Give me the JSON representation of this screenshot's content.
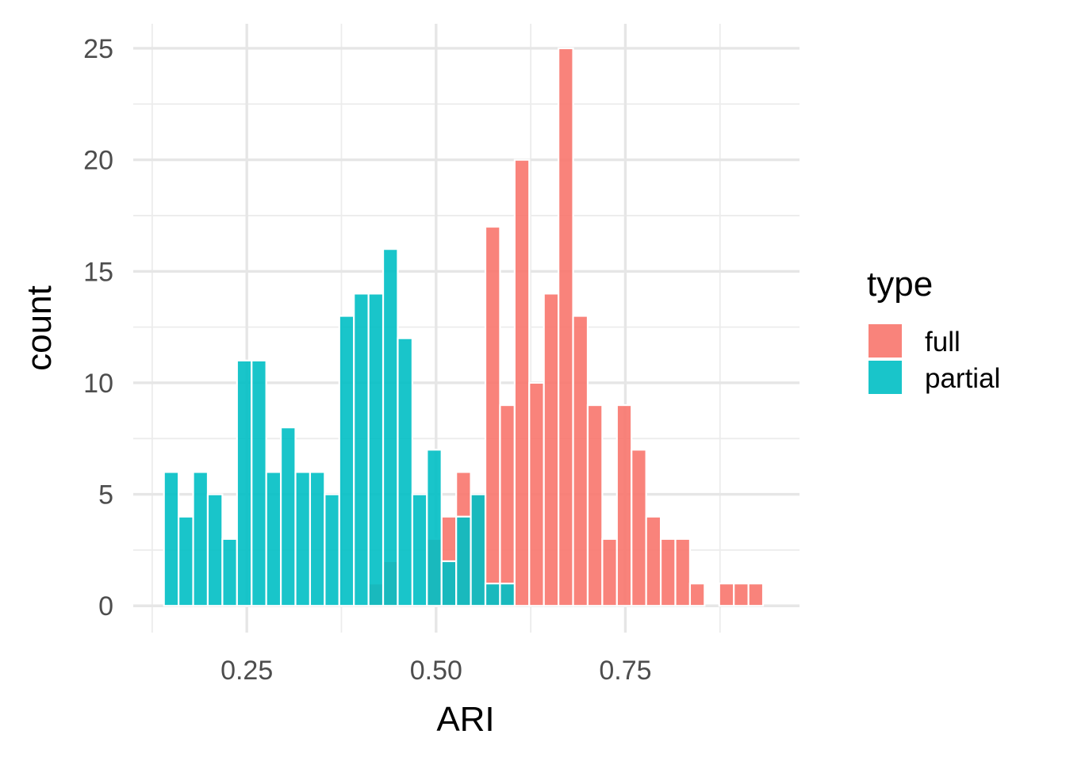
{
  "chart_data": {
    "type": "bar",
    "subtype": "histogram",
    "title": "",
    "xlabel": "ARI",
    "ylabel": "count",
    "xlim": [
      0.1,
      0.98
    ],
    "ylim": [
      -1.2,
      26.1
    ],
    "x_ticks": [
      0.25,
      0.5,
      0.75
    ],
    "x_tick_labels": [
      "0.25",
      "0.50",
      "0.75"
    ],
    "y_ticks": [
      0,
      5,
      10,
      15,
      20,
      25
    ],
    "y_tick_labels": [
      "0",
      "5",
      "10",
      "15",
      "20",
      "25"
    ],
    "grid": true,
    "legend": {
      "title": "type",
      "position": "right"
    },
    "bin_width": 0.0193,
    "bin_centers": [
      0.1502,
      0.1695,
      0.1888,
      0.2081,
      0.2274,
      0.2467,
      0.266,
      0.2853,
      0.3046,
      0.3239,
      0.3432,
      0.3625,
      0.3818,
      0.4011,
      0.4204,
      0.4397,
      0.459,
      0.4783,
      0.4976,
      0.5169,
      0.5362,
      0.5555,
      0.5748,
      0.5941,
      0.6134,
      0.6327,
      0.652,
      0.6713,
      0.6906,
      0.7099,
      0.7292,
      0.7485,
      0.7678,
      0.7871,
      0.8064,
      0.8257,
      0.845,
      0.8643,
      0.8836,
      0.9029,
      0.9222
    ],
    "series": [
      {
        "name": "full",
        "color": "#F8766D",
        "values": [
          0,
          0,
          0,
          0,
          0,
          0,
          0,
          0,
          0,
          0,
          0,
          0,
          0,
          0,
          1,
          2,
          0,
          0,
          3,
          4,
          6,
          5,
          17,
          9,
          20,
          10,
          14,
          25,
          13,
          9,
          3,
          9,
          7,
          4,
          3,
          3,
          1,
          0,
          1,
          1,
          1
        ]
      },
      {
        "name": "partial",
        "color": "#00BFC4",
        "values": [
          6,
          4,
          6,
          5,
          3,
          11,
          11,
          6,
          8,
          6,
          6,
          5,
          13,
          14,
          14,
          16,
          12,
          5,
          7,
          2,
          4,
          5,
          1,
          1,
          0,
          0,
          0,
          0,
          0,
          0,
          0,
          0,
          0,
          0,
          0,
          0,
          0,
          0,
          0,
          0,
          0
        ]
      }
    ]
  }
}
